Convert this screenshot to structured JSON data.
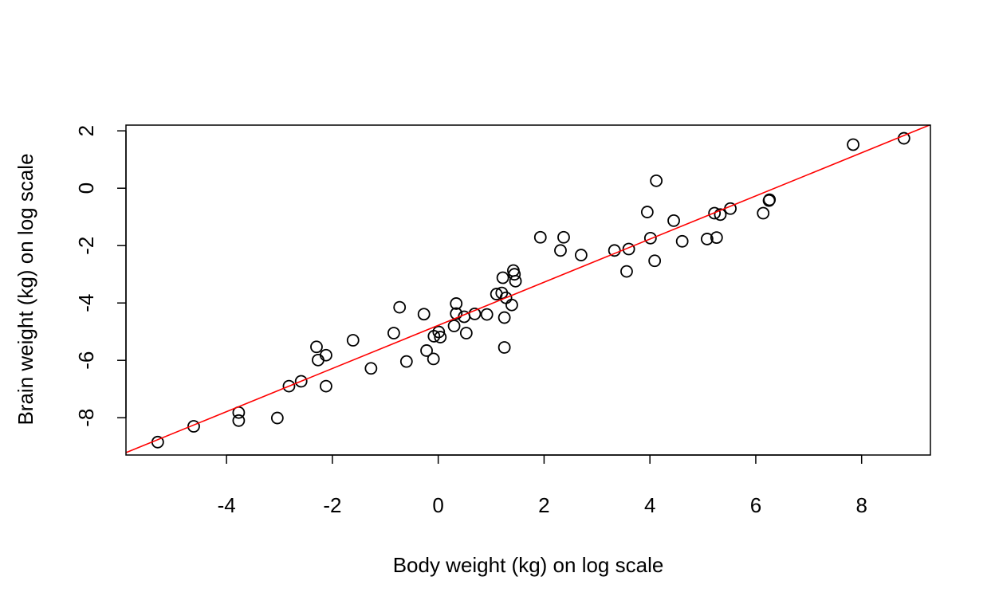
{
  "chart_data": {
    "type": "scatter",
    "title": "",
    "xlabel": "Body weight (kg) on log scale",
    "ylabel": "Brain weight (kg) on log scale",
    "xlim": [
      -5.9,
      9.3
    ],
    "ylim": [
      -9.3,
      2.2
    ],
    "x_ticks": [
      -4,
      -2,
      0,
      2,
      4,
      6,
      8
    ],
    "y_ticks": [
      -8,
      -6,
      -4,
      -2,
      0,
      2
    ],
    "grid": false,
    "legend": "none",
    "marker": "open-circle",
    "colors": {
      "points": "#000000",
      "fit_line": "#ff0000",
      "frame": "#000000"
    },
    "fit_line": {
      "intercept": -4.78,
      "slope": 0.752
    },
    "points": [
      [
        -5.3,
        -8.85
      ],
      [
        -4.62,
        -8.3
      ],
      [
        -3.77,
        -7.82
      ],
      [
        -3.77,
        -8.1
      ],
      [
        -3.04,
        -8.01
      ],
      [
        -2.82,
        -6.9
      ],
      [
        -2.59,
        -6.73
      ],
      [
        -2.3,
        -5.53
      ],
      [
        -2.27,
        -5.99
      ],
      [
        -2.12,
        -5.82
      ],
      [
        -2.12,
        -6.9
      ],
      [
        -1.61,
        -5.3
      ],
      [
        -1.27,
        -6.28
      ],
      [
        -0.84,
        -5.05
      ],
      [
        -0.73,
        -4.15
      ],
      [
        -0.6,
        -6.04
      ],
      [
        -0.27,
        -4.39
      ],
      [
        -0.22,
        -5.66
      ],
      [
        -0.09,
        -5.95
      ],
      [
        -0.08,
        -5.16
      ],
      [
        0.01,
        -5.01
      ],
      [
        0.04,
        -5.19
      ],
      [
        0.3,
        -4.8
      ],
      [
        0.34,
        -4.02
      ],
      [
        0.34,
        -4.37
      ],
      [
        0.49,
        -4.48
      ],
      [
        0.53,
        -5.05
      ],
      [
        0.69,
        -4.38
      ],
      [
        0.92,
        -4.4
      ],
      [
        1.1,
        -3.69
      ],
      [
        1.2,
        -3.65
      ],
      [
        1.22,
        -3.12
      ],
      [
        1.25,
        -4.51
      ],
      [
        1.25,
        -5.55
      ],
      [
        1.28,
        -3.82
      ],
      [
        1.39,
        -4.07
      ],
      [
        1.42,
        -2.87
      ],
      [
        1.44,
        -3.0
      ],
      [
        1.46,
        -3.24
      ],
      [
        1.93,
        -1.71
      ],
      [
        2.31,
        -2.17
      ],
      [
        2.37,
        -1.71
      ],
      [
        2.7,
        -2.33
      ],
      [
        3.33,
        -2.17
      ],
      [
        3.56,
        -2.9
      ],
      [
        3.6,
        -2.12
      ],
      [
        3.95,
        -0.83
      ],
      [
        4.01,
        -1.74
      ],
      [
        4.09,
        -2.53
      ],
      [
        4.12,
        0.26
      ],
      [
        4.45,
        -1.13
      ],
      [
        4.61,
        -1.85
      ],
      [
        5.08,
        -1.77
      ],
      [
        5.22,
        -0.87
      ],
      [
        5.26,
        -1.72
      ],
      [
        5.33,
        -0.92
      ],
      [
        5.52,
        -0.71
      ],
      [
        6.14,
        -0.87
      ],
      [
        6.25,
        -0.43
      ],
      [
        6.26,
        -0.4
      ],
      [
        7.84,
        1.52
      ],
      [
        8.8,
        1.74
      ]
    ]
  }
}
